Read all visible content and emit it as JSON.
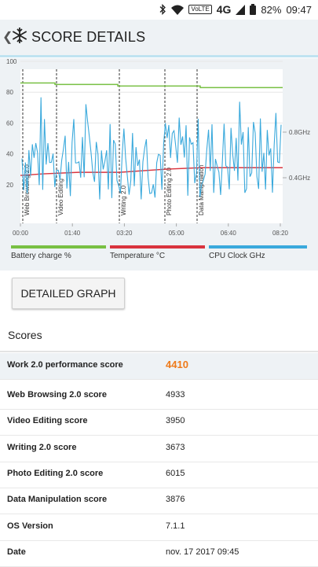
{
  "status_bar": {
    "network": "4G",
    "volte": "VoLTE",
    "battery": "82%",
    "time": "09:47"
  },
  "header": {
    "title": "SCORE DETAILS"
  },
  "graph": {
    "y_ticks": [
      "100",
      "80",
      "60",
      "40",
      "20"
    ],
    "x_ticks": [
      "00:00",
      "01:40",
      "03:20",
      "05:00",
      "06:40",
      "08:20"
    ],
    "right_ticks": [
      "0.8GHz",
      "0.4GHz"
    ],
    "sections": [
      "Web Browsing 2.0",
      "Video Editing",
      "Writing 2.0",
      "Photo Editing 2.0",
      "Data Manipulation"
    ]
  },
  "chart_data": {
    "type": "line",
    "x": [
      "00:00",
      "01:40",
      "03:20",
      "05:00",
      "06:40",
      "08:20"
    ],
    "ylim": [
      0,
      100
    ],
    "series": [
      {
        "name": "Battery charge %",
        "color": "#78c043",
        "values": [
          86,
          85,
          84,
          84,
          83,
          83
        ]
      },
      {
        "name": "Temperature °C",
        "color": "#d9343e",
        "values": [
          27,
          28,
          29,
          30,
          31,
          31
        ]
      },
      {
        "name": "CPU Clock GHz",
        "color": "#3aa9dc",
        "values": [
          0.4,
          0.5,
          0.35,
          0.45,
          0.4,
          0.4
        ]
      }
    ]
  },
  "legend": [
    {
      "label": "Battery charge %",
      "color": "#78c043"
    },
    {
      "label": "Temperature °C",
      "color": "#d9343e"
    },
    {
      "label": "CPU Clock GHz",
      "color": "#3aa9dc"
    }
  ],
  "detailed_button": "DETAILED GRAPH",
  "scores_heading": "Scores",
  "scores": [
    {
      "label": "Work 2.0 performance score",
      "value": "4410"
    },
    {
      "label": "Web Browsing 2.0 score",
      "value": "4933"
    },
    {
      "label": "Video Editing score",
      "value": "3950"
    },
    {
      "label": "Writing 2.0 score",
      "value": "3673"
    },
    {
      "label": "Photo Editing 2.0 score",
      "value": "6015"
    },
    {
      "label": "Data Manipulation score",
      "value": "3876"
    },
    {
      "label": "OS Version",
      "value": "7.1.1"
    },
    {
      "label": "Date",
      "value": "nov. 17 2017 09:45"
    }
  ]
}
